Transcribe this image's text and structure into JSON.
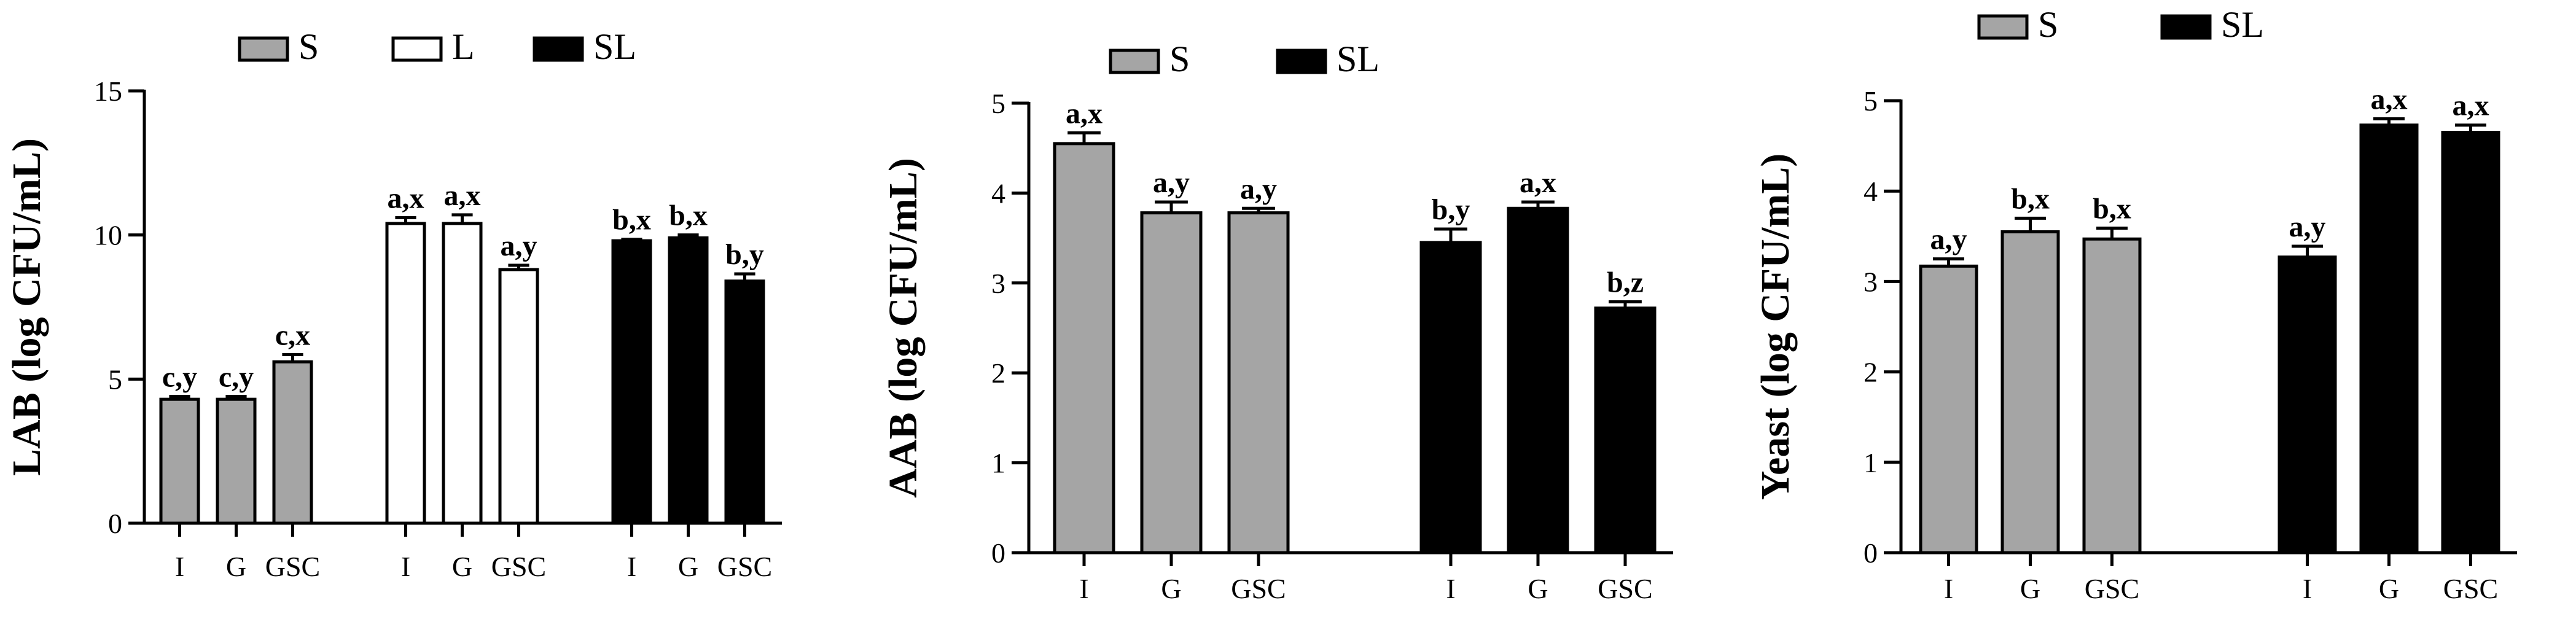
{
  "colors": {
    "S": "#a5a5a5",
    "L": "#ffffff",
    "SL": "#000000",
    "axis": "#000000"
  },
  "chart_data": [
    {
      "type": "bar",
      "ylabel": "LAB (log CFU/mL)",
      "ylim": [
        0,
        15
      ],
      "yticks": [
        "0",
        "5",
        "10",
        "15"
      ],
      "legend": {
        "position": "top",
        "entries": [
          "S",
          "L",
          "SL"
        ]
      },
      "groups": [
        {
          "series": "S",
          "bars": [
            {
              "category": "I",
              "value": 4.3,
              "error": 0.1,
              "label": "c,y"
            },
            {
              "category": "G",
              "value": 4.3,
              "error": 0.1,
              "label": "c,y"
            },
            {
              "category": "GSC",
              "value": 5.6,
              "error": 0.25,
              "label": "c,x"
            }
          ]
        },
        {
          "series": "L",
          "bars": [
            {
              "category": "I",
              "value": 10.4,
              "error": 0.2,
              "label": "a,x"
            },
            {
              "category": "G",
              "value": 10.4,
              "error": 0.3,
              "label": "a,x"
            },
            {
              "category": "GSC",
              "value": 8.8,
              "error": 0.15,
              "label": "a,y"
            }
          ]
        },
        {
          "series": "SL",
          "bars": [
            {
              "category": "I",
              "value": 9.8,
              "error": 0.05,
              "label": "b,x"
            },
            {
              "category": "G",
              "value": 9.9,
              "error": 0.1,
              "label": "b,x"
            },
            {
              "category": "GSC",
              "value": 8.4,
              "error": 0.25,
              "label": "b,y"
            }
          ]
        }
      ]
    },
    {
      "type": "bar",
      "ylabel": "AAB (log CFU/mL)",
      "ylim": [
        0,
        5
      ],
      "yticks": [
        "0",
        "1",
        "2",
        "3",
        "4",
        "5"
      ],
      "legend": {
        "position": "top",
        "entries": [
          "S",
          "SL"
        ]
      },
      "groups": [
        {
          "series": "S",
          "bars": [
            {
              "category": "I",
              "value": 4.55,
              "error": 0.12,
              "label": "a,x"
            },
            {
              "category": "G",
              "value": 3.78,
              "error": 0.12,
              "label": "a,y"
            },
            {
              "category": "GSC",
              "value": 3.78,
              "error": 0.05,
              "label": "a,y"
            }
          ]
        },
        {
          "series": "SL",
          "bars": [
            {
              "category": "I",
              "value": 3.45,
              "error": 0.15,
              "label": "b,y"
            },
            {
              "category": "G",
              "value": 3.83,
              "error": 0.07,
              "label": "a,x"
            },
            {
              "category": "GSC",
              "value": 2.72,
              "error": 0.07,
              "label": "b,z"
            }
          ]
        }
      ]
    },
    {
      "type": "bar",
      "ylabel": "Yeast (log CFU/mL)",
      "ylim": [
        0,
        5
      ],
      "yticks": [
        "0",
        "1",
        "2",
        "3",
        "4",
        "5"
      ],
      "legend": {
        "position": "top",
        "entries": [
          "S",
          "SL"
        ]
      },
      "groups": [
        {
          "series": "S",
          "bars": [
            {
              "category": "I",
              "value": 3.17,
              "error": 0.08,
              "label": "a,y"
            },
            {
              "category": "G",
              "value": 3.55,
              "error": 0.15,
              "label": "b,x"
            },
            {
              "category": "GSC",
              "value": 3.47,
              "error": 0.12,
              "label": "b,x"
            }
          ]
        },
        {
          "series": "SL",
          "bars": [
            {
              "category": "I",
              "value": 3.27,
              "error": 0.12,
              "label": "a,y"
            },
            {
              "category": "G",
              "value": 4.73,
              "error": 0.07,
              "label": "a,x"
            },
            {
              "category": "GSC",
              "value": 4.65,
              "error": 0.08,
              "label": "a,x"
            }
          ]
        }
      ]
    }
  ]
}
